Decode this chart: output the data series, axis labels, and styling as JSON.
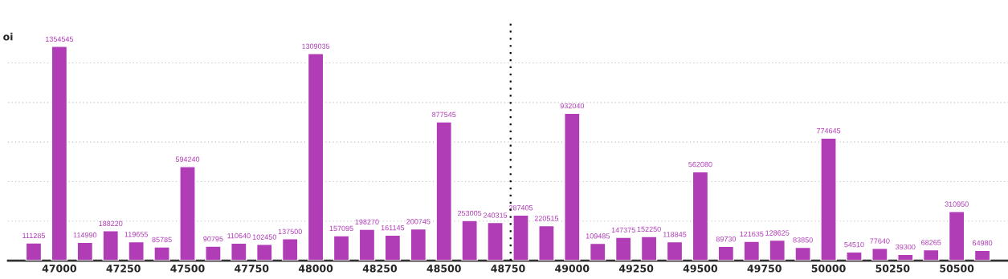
{
  "chart_data": {
    "type": "bar",
    "ylabel": "oi",
    "x": [
      46900,
      47000,
      47100,
      47200,
      47300,
      47400,
      47500,
      47600,
      47700,
      47800,
      47900,
      48000,
      48100,
      48200,
      48300,
      48400,
      48500,
      48600,
      48700,
      48800,
      48900,
      49000,
      49100,
      49200,
      49300,
      49400,
      49500,
      49600,
      49700,
      49800,
      49900,
      50000,
      50100,
      50200,
      50300,
      50400,
      50500,
      50600
    ],
    "values": [
      111285,
      1354545,
      114990,
      188220,
      119655,
      85785,
      594240,
      90795,
      110640,
      102450,
      137500,
      1309035,
      157095,
      198270,
      161145,
      200745,
      877545,
      253005,
      240315,
      287405,
      220515,
      932040,
      109485,
      147375,
      152250,
      118845,
      562080,
      89730,
      121635,
      128625,
      83850,
      774645,
      54510,
      77640,
      39300,
      68265,
      310950,
      64980
    ],
    "color": "#b03cb6",
    "data_labels": true,
    "xlim": [
      46800,
      50700
    ],
    "xticks": [
      47000,
      47250,
      47500,
      47750,
      48000,
      48250,
      48500,
      48750,
      49000,
      49250,
      49500,
      49750,
      50000,
      50250,
      50500
    ],
    "ylim": [
      0,
      1500000
    ],
    "yticks": [
      {
        "value": 250000,
        "label": null
      },
      {
        "value": 500000,
        "label": null
      },
      {
        "value": 750000,
        "label": null
      },
      {
        "value": 1000000,
        "label": null
      },
      {
        "value": 1250000,
        "label": null
      }
    ],
    "grid": "y",
    "ref_lines": [
      {
        "axis": "x",
        "value": 48760,
        "color": "#000000",
        "line_style": "dotted"
      }
    ]
  }
}
